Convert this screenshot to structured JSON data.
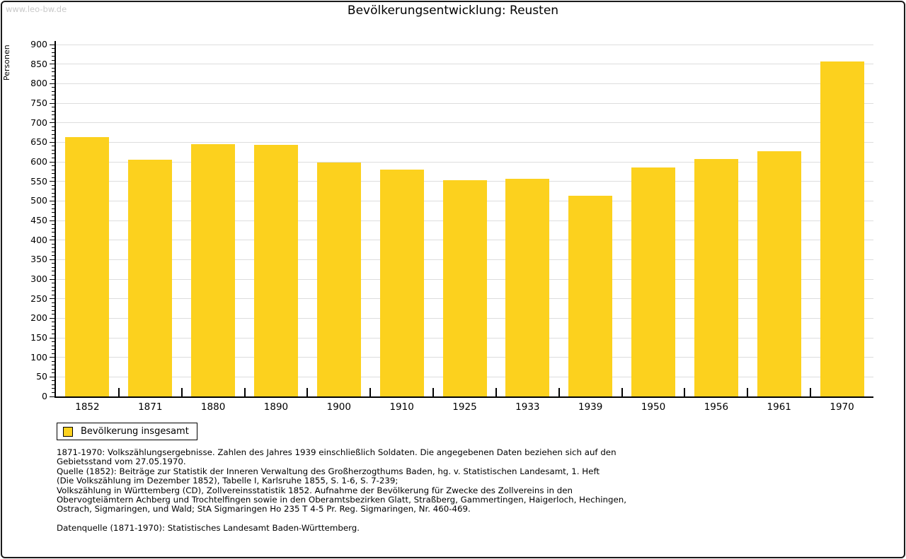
{
  "watermark": "www.leo-bw.de",
  "header": {
    "title": "Bevölkerungsentwicklung: Reusten"
  },
  "chart_data": {
    "type": "bar",
    "title": "Bevölkerungsentwicklung: Reusten",
    "xlabel": "",
    "ylabel": "Personen",
    "categories": [
      "1852",
      "1871",
      "1880",
      "1890",
      "1900",
      "1910",
      "1925",
      "1933",
      "1939",
      "1950",
      "1956",
      "1961",
      "1970"
    ],
    "values": [
      664,
      605,
      645,
      643,
      598,
      580,
      553,
      557,
      514,
      586,
      608,
      627,
      856
    ],
    "series_name": "Bevölkerung insgesamt",
    "ylim": [
      0,
      900
    ],
    "ytick_step": 50,
    "y_minor_tick_step": 10,
    "grid": true,
    "legend_position": "bottom-left",
    "bar_color": "#FCD11E"
  },
  "legend": {
    "label": "Bevölkerung insgesamt",
    "swatch_color": "#FCD11E"
  },
  "footer": {
    "lines": [
      "1871-1970: Volkszählungsergebnisse. Zahlen des Jahres 1939 einschließlich Soldaten. Die angegebenen Daten beziehen sich auf den",
      "Gebietsstand vom 27.05.1970.",
      "Quelle (1852): Beiträge zur Statistik der Inneren Verwaltung des Großherzogthums Baden, hg. v. Statistischen Landesamt, 1. Heft",
      "(Die Volkszählung im Dezember 1852), Tabelle I, Karlsruhe 1855, S. 1-6, S. 7-239;",
      "Volkszählung in Württemberg (CD), Zollvereinsstatistik 1852. Aufnahme der Bevölkerung für Zwecke des Zollvereins in den",
      "Obervogteiämtern Achberg und Trochtelfingen sowie in den Oberamtsbezirken Glatt, Straßberg, Gammertingen, Haigerloch, Hechingen,",
      "Ostrach, Sigmaringen, und Wald; StA Sigmaringen Ho 235 T 4-5 Pr. Reg. Sigmaringen, Nr. 460-469."
    ],
    "datasource": "Datenquelle (1871-1970): Statistisches Landesamt Baden-Württemberg."
  },
  "colors": {
    "bar": "#FCD11E",
    "grid": "#DDDDDD",
    "axis": "#000000",
    "watermark": "#C9C9C9",
    "background": "#FFFFFF",
    "frame_border": "#1A1A1A"
  }
}
